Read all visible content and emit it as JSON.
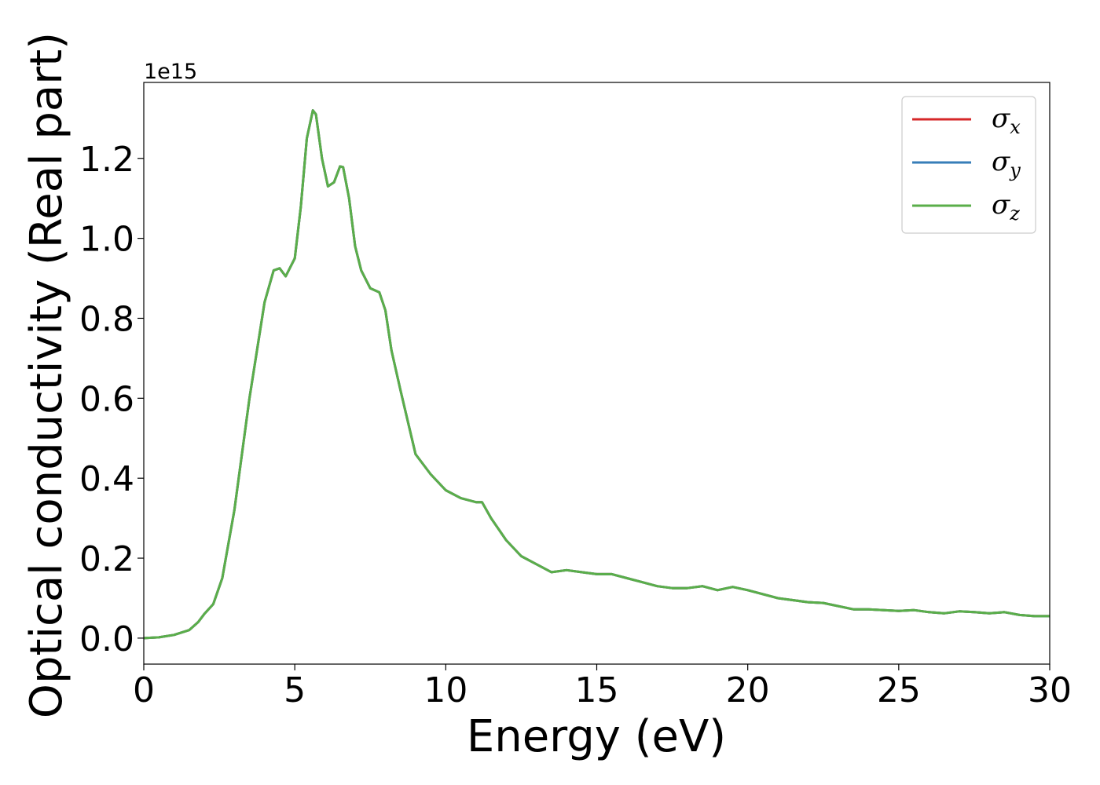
{
  "chart_data": {
    "type": "line",
    "xlabel": "Energy (eV)",
    "ylabel": "Optical conductivity (Real part)",
    "y_offset_text": "1e15",
    "y_scale": 1000000000000000.0,
    "xlim": [
      0,
      30
    ],
    "ylim": [
      -0.065,
      1.39
    ],
    "xticks": [
      0,
      5,
      10,
      15,
      20,
      25,
      30
    ],
    "xtick_labels": [
      "0",
      "5",
      "10",
      "15",
      "20",
      "25",
      "30"
    ],
    "yticks": [
      0.0,
      0.2,
      0.4,
      0.6,
      0.8,
      1.0,
      1.2
    ],
    "ytick_labels": [
      "0.0",
      "0.2",
      "0.4",
      "0.6",
      "0.8",
      "1.0",
      "1.2"
    ],
    "grid": false,
    "legend_position": "top-right",
    "x": [
      0,
      0.5,
      1.0,
      1.5,
      1.8,
      2.0,
      2.3,
      2.6,
      3.0,
      3.5,
      4.0,
      4.3,
      4.5,
      4.7,
      5.0,
      5.2,
      5.4,
      5.6,
      5.7,
      5.9,
      6.1,
      6.3,
      6.5,
      6.6,
      6.8,
      7.0,
      7.2,
      7.5,
      7.8,
      8.0,
      8.2,
      8.5,
      9.0,
      9.5,
      10.0,
      10.5,
      11.0,
      11.2,
      11.5,
      12.0,
      12.5,
      13.0,
      13.5,
      14.0,
      14.5,
      15.0,
      15.5,
      16.0,
      16.5,
      17.0,
      17.5,
      18.0,
      18.5,
      19.0,
      19.5,
      20.0,
      21.0,
      22.0,
      22.5,
      23.5,
      24.0,
      25.0,
      25.5,
      26.0,
      26.5,
      27.0,
      27.5,
      28.0,
      28.5,
      29.0,
      29.5,
      30.0
    ],
    "series": [
      {
        "name": "σx",
        "color": "#d62728",
        "values": [
          0.0,
          0.002,
          0.008,
          0.02,
          0.04,
          0.06,
          0.085,
          0.15,
          0.32,
          0.6,
          0.84,
          0.92,
          0.925,
          0.905,
          0.95,
          1.08,
          1.25,
          1.32,
          1.31,
          1.2,
          1.13,
          1.14,
          1.18,
          1.178,
          1.1,
          0.98,
          0.92,
          0.875,
          0.865,
          0.82,
          0.72,
          0.62,
          0.46,
          0.41,
          0.37,
          0.35,
          0.34,
          0.34,
          0.3,
          0.245,
          0.205,
          0.185,
          0.165,
          0.17,
          0.165,
          0.16,
          0.16,
          0.15,
          0.14,
          0.13,
          0.125,
          0.125,
          0.13,
          0.12,
          0.128,
          0.12,
          0.1,
          0.09,
          0.088,
          0.072,
          0.072,
          0.068,
          0.07,
          0.065,
          0.062,
          0.067,
          0.065,
          0.062,
          0.065,
          0.058,
          0.055,
          0.055
        ]
      },
      {
        "name": "σy",
        "color": "#377eb8",
        "values": [
          0.0,
          0.002,
          0.008,
          0.02,
          0.04,
          0.06,
          0.085,
          0.15,
          0.32,
          0.6,
          0.84,
          0.92,
          0.925,
          0.905,
          0.95,
          1.08,
          1.25,
          1.32,
          1.31,
          1.2,
          1.13,
          1.14,
          1.18,
          1.178,
          1.1,
          0.98,
          0.92,
          0.875,
          0.865,
          0.82,
          0.72,
          0.62,
          0.46,
          0.41,
          0.37,
          0.35,
          0.34,
          0.34,
          0.3,
          0.245,
          0.205,
          0.185,
          0.165,
          0.17,
          0.165,
          0.16,
          0.16,
          0.15,
          0.14,
          0.13,
          0.125,
          0.125,
          0.13,
          0.12,
          0.128,
          0.12,
          0.1,
          0.09,
          0.088,
          0.072,
          0.072,
          0.068,
          0.07,
          0.065,
          0.062,
          0.067,
          0.065,
          0.062,
          0.065,
          0.058,
          0.055,
          0.055
        ]
      },
      {
        "name": "σz",
        "color": "#5aae4a",
        "values": [
          0.0,
          0.002,
          0.008,
          0.02,
          0.04,
          0.06,
          0.085,
          0.15,
          0.32,
          0.6,
          0.84,
          0.92,
          0.925,
          0.905,
          0.95,
          1.08,
          1.25,
          1.32,
          1.31,
          1.2,
          1.13,
          1.14,
          1.18,
          1.178,
          1.1,
          0.98,
          0.92,
          0.875,
          0.865,
          0.82,
          0.72,
          0.62,
          0.46,
          0.41,
          0.37,
          0.35,
          0.34,
          0.34,
          0.3,
          0.245,
          0.205,
          0.185,
          0.165,
          0.17,
          0.165,
          0.16,
          0.16,
          0.15,
          0.14,
          0.13,
          0.125,
          0.125,
          0.13,
          0.12,
          0.128,
          0.12,
          0.1,
          0.09,
          0.088,
          0.072,
          0.072,
          0.068,
          0.07,
          0.065,
          0.062,
          0.067,
          0.065,
          0.062,
          0.065,
          0.058,
          0.055,
          0.055
        ]
      }
    ],
    "legend": [
      {
        "symbol": "σ",
        "sub": "x",
        "color": "#d62728"
      },
      {
        "symbol": "σ",
        "sub": "y",
        "color": "#377eb8"
      },
      {
        "symbol": "σ",
        "sub": "z",
        "color": "#5aae4a"
      }
    ]
  }
}
